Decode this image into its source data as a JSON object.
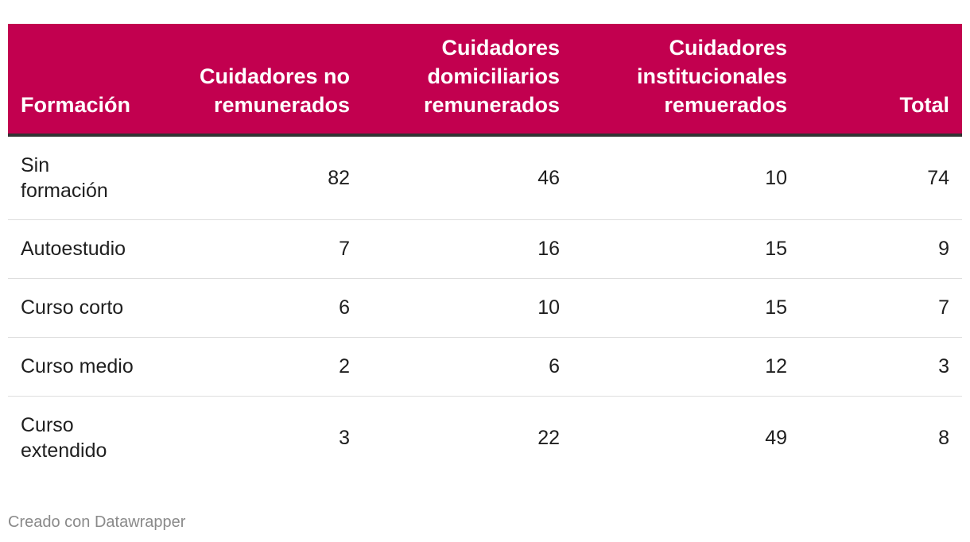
{
  "chart_data": {
    "type": "table",
    "columns": [
      "Formación",
      "Cuidadores no remunerados",
      "Cuidadores domiciliarios remunerados",
      "Cuidadores institucionales remuerados",
      "Total"
    ],
    "rows": [
      [
        "Sin formación",
        "82",
        "46",
        "10",
        "74"
      ],
      [
        "Autoestudio",
        "7",
        "16",
        "15",
        "9"
      ],
      [
        "Curso corto",
        "6",
        "10",
        "15",
        "7"
      ],
      [
        "Curso medio",
        "2",
        "6",
        "12",
        "3"
      ],
      [
        "Curso extendido",
        "3",
        "22",
        "49",
        "8"
      ]
    ]
  },
  "footer": {
    "credit": "Creado con Datawrapper"
  },
  "colors": {
    "header_background": "#c2004f",
    "header_text": "#ffffff",
    "header_rule": "#333333",
    "row_rule": "#dedede",
    "credit_text": "#8a8a8a"
  }
}
